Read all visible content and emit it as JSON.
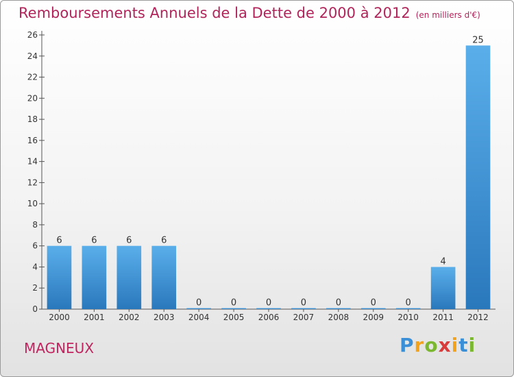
{
  "title": "Remboursements Annuels de la Dette de 2000 à 2012",
  "subtitle": "(en milliers d'€)",
  "place": "MAGNEUX",
  "logo": {
    "letters": [
      "P",
      "r",
      "o",
      "x",
      "i",
      "t",
      "i"
    ],
    "colors": [
      "#3b8fd6",
      "#f2a21b",
      "#7cb731",
      "#d93a3a",
      "#f2a21b",
      "#3b8fd6",
      "#7cb731"
    ]
  },
  "colors": {
    "bar_top": "#5aafea",
    "bar_bottom": "#2a78bc",
    "title": "#b0245a"
  },
  "chart_data": {
    "type": "bar",
    "title": "Remboursements Annuels de la Dette de 2000 à 2012",
    "subtitle": "(en milliers d'€)",
    "categories": [
      "2000",
      "2001",
      "2002",
      "2003",
      "2004",
      "2005",
      "2006",
      "2007",
      "2008",
      "2009",
      "2010",
      "2011",
      "2012"
    ],
    "values": [
      6,
      6,
      6,
      6,
      0,
      0,
      0,
      0,
      0,
      0,
      0,
      4,
      25
    ],
    "value_labels": [
      "6",
      "6",
      "6",
      "6",
      "0",
      "0",
      "0",
      "0",
      "0",
      "0",
      "0",
      "4",
      "25"
    ],
    "ylim": [
      0,
      26
    ],
    "yticks": [
      0,
      2,
      4,
      6,
      8,
      10,
      12,
      14,
      16,
      18,
      20,
      22,
      24,
      26
    ],
    "ytick_labels": [
      "0",
      "2",
      "4",
      "6",
      "8",
      "10",
      "12",
      "14",
      "16",
      "18",
      "20",
      "22",
      "24",
      "26"
    ],
    "grid": false,
    "legend": "none"
  }
}
